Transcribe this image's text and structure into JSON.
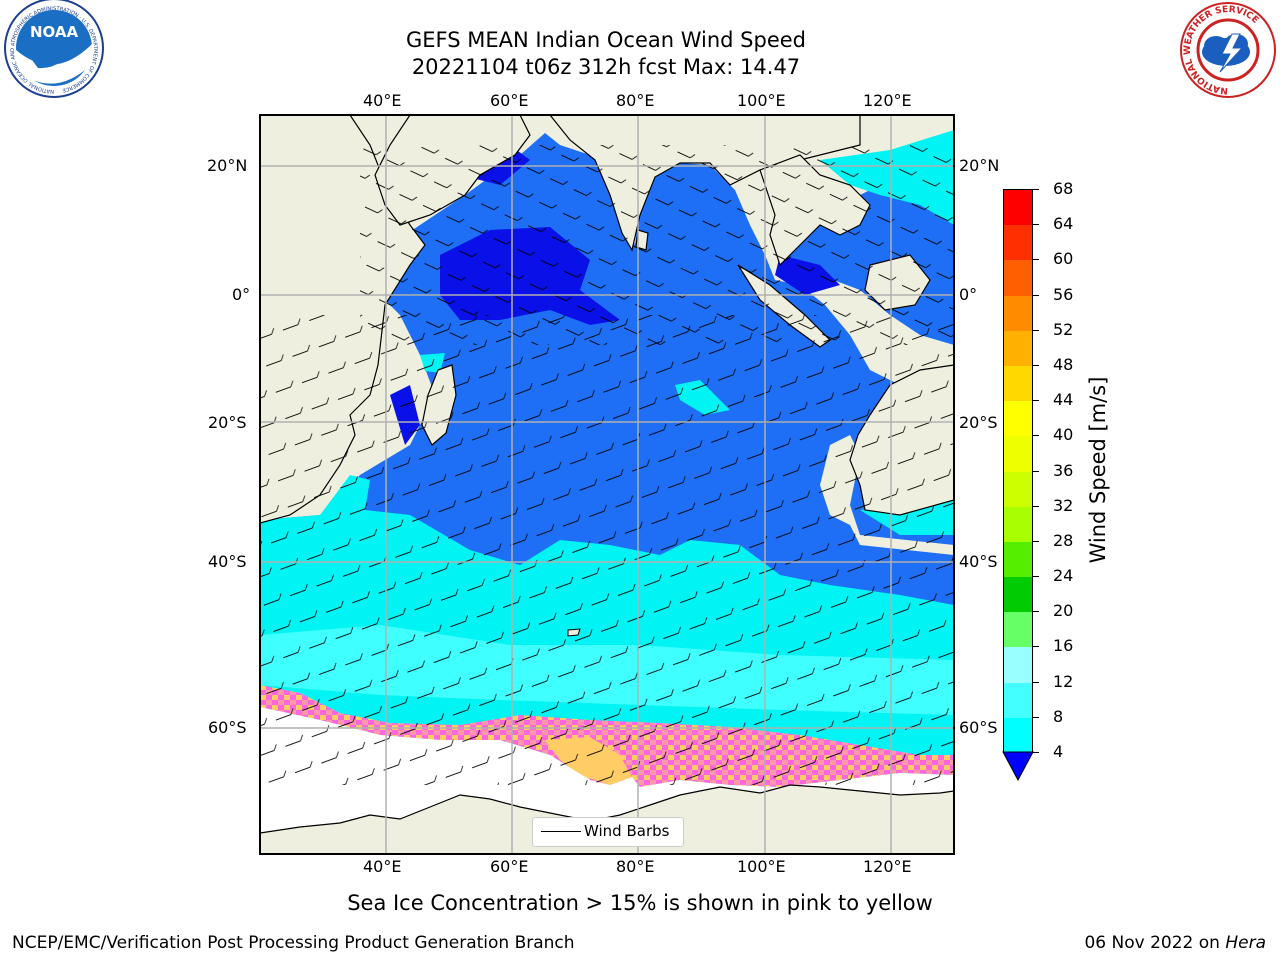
{
  "header": {
    "title_line1": "GEFS MEAN Indian Ocean Wind Speed",
    "title_line2": "20221104 t06z 312h fcst   Max: 14.47"
  },
  "logos": {
    "noaa_text": "NOAA",
    "noaa_ring_text": "NATIONAL OCEANIC AND ATMOSPHERIC ADMINISTRATION · U.S. DEPARTMENT OF COMMERCE",
    "nws_ring_text": "NATIONAL WEATHER SERVICE"
  },
  "map": {
    "lon_labels_top": [
      "40°E",
      "60°E",
      "80°E",
      "100°E",
      "120°E"
    ],
    "lon_labels_bottom": [
      "40°E",
      "60°E",
      "80°E",
      "100°E",
      "120°E"
    ],
    "lat_labels_left": [
      "20°N",
      "0°",
      "20°S",
      "40°S",
      "60°S"
    ],
    "lat_labels_right": [
      "20°N",
      "0°",
      "20°S",
      "40°S",
      "60°S"
    ],
    "legend_label": "Wind Barbs",
    "colors": {
      "land": "#efefdf",
      "ocean_4_8": "#1e6ff5",
      "ocean_under_4": "#0a10e8",
      "ocean_8_12": "#00f4f4",
      "ocean_12_16": "#40ffff",
      "ice_pink": "#ff55dd",
      "ice_yellow": "#ffcc66"
    }
  },
  "colorbar": {
    "label": "Wind Speed [m/s]",
    "ticks": [
      "68",
      "64",
      "60",
      "56",
      "52",
      "48",
      "44",
      "40",
      "36",
      "32",
      "28",
      "24",
      "20",
      "16",
      "12",
      "8",
      "4"
    ],
    "colors": [
      "#ff0000",
      "#ff2f00",
      "#ff5f00",
      "#ff8c00",
      "#ffb000",
      "#ffd800",
      "#ffff00",
      "#eeff00",
      "#ccff00",
      "#a8ff00",
      "#55ee00",
      "#00cc00",
      "#66ff66",
      "#99ffff",
      "#44ffff",
      "#00ffff",
      "#1a74f5"
    ],
    "under_color": "#0000ff"
  },
  "note": "Sea Ice Concentration > 15% is shown in pink to yellow",
  "footer": {
    "left": "NCEP/EMC/Verification Post Processing Product Generation Branch",
    "right_prefix": "06 Nov 2022 on ",
    "right_host": "Hera"
  }
}
